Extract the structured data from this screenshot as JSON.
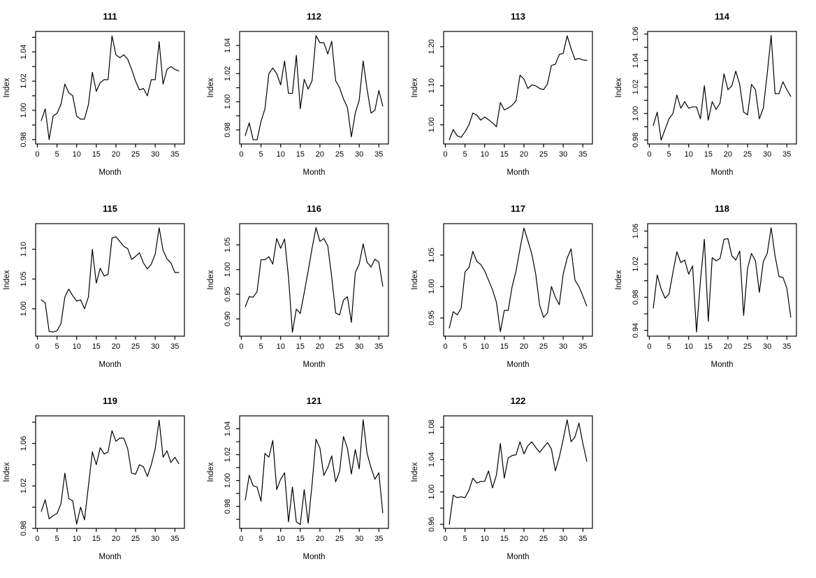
{
  "page": {
    "background": "#ffffff",
    "line_color": "#000000",
    "text_color": "#000000"
  },
  "chart_defaults": {
    "type": "line",
    "xlabel": "Month",
    "ylabel": "Index",
    "xticks": [
      0,
      5,
      10,
      15,
      20,
      25,
      30,
      35
    ],
    "xlim": [
      -0.44,
      37.44
    ],
    "grid": false,
    "legend": null,
    "x": [
      1,
      2,
      3,
      4,
      5,
      6,
      7,
      8,
      9,
      10,
      11,
      12,
      13,
      14,
      15,
      16,
      17,
      18,
      19,
      20,
      21,
      22,
      23,
      24,
      25,
      26,
      27,
      28,
      29,
      30,
      31,
      32,
      33,
      34,
      35,
      36
    ]
  },
  "chart_data": [
    {
      "type": "line",
      "title": "111",
      "xlabel": "Month",
      "ylabel": "Index",
      "ylim": [
        0.977,
        1.054
      ],
      "yticks": [
        0.98,
        1.0,
        1.02,
        1.04
      ],
      "yticks_minor": [
        0.99,
        1.01,
        1.03,
        1.05
      ],
      "values": [
        0.993,
        1.001,
        0.98,
        0.996,
        0.998,
        1.004,
        1.018,
        1.012,
        1.01,
        0.996,
        0.994,
        0.994,
        1.004,
        1.026,
        1.013,
        1.019,
        1.021,
        1.021,
        1.051,
        1.038,
        1.036,
        1.038,
        1.035,
        1.028,
        1.02,
        1.014,
        1.015,
        1.01,
        1.021,
        1.021,
        1.047,
        1.018,
        1.028,
        1.03,
        1.028,
        1.027
      ]
    },
    {
      "type": "line",
      "title": "112",
      "xlabel": "Month",
      "ylabel": "Index",
      "ylim": [
        0.97,
        1.05
      ],
      "yticks": [
        0.98,
        1.0,
        1.02,
        1.04
      ],
      "yticks_minor": [
        0.99,
        1.01,
        1.03
      ],
      "values": [
        0.976,
        0.985,
        0.973,
        0.973,
        0.986,
        0.995,
        1.02,
        1.024,
        1.02,
        1.012,
        1.029,
        1.006,
        1.006,
        1.033,
        0.995,
        1.016,
        1.009,
        1.015,
        1.047,
        1.042,
        1.042,
        1.034,
        1.043,
        1.015,
        1.01,
        1.002,
        0.996,
        0.975,
        0.992,
        1.001,
        1.029,
        1.009,
        0.992,
        0.994,
        1.008,
        0.997
      ]
    },
    {
      "type": "line",
      "title": "113",
      "xlabel": "Month",
      "ylabel": "Index",
      "ylim": [
        0.951,
        1.239
      ],
      "yticks": [
        1.0,
        1.1,
        1.2
      ],
      "yticks_minor": [
        1.05,
        1.15
      ],
      "values": [
        0.962,
        0.988,
        0.972,
        0.968,
        0.982,
        1.0,
        1.03,
        1.025,
        1.012,
        1.02,
        1.013,
        1.005,
        0.995,
        1.057,
        1.038,
        1.043,
        1.05,
        1.062,
        1.127,
        1.117,
        1.093,
        1.102,
        1.1,
        1.093,
        1.09,
        1.105,
        1.152,
        1.155,
        1.18,
        1.183,
        1.228,
        1.195,
        1.167,
        1.17,
        1.166,
        1.165
      ]
    },
    {
      "type": "line",
      "title": "114",
      "xlabel": "Month",
      "ylabel": "Index",
      "ylim": [
        0.977,
        1.062
      ],
      "yticks": [
        0.98,
        1.0,
        1.02,
        1.04,
        1.06
      ],
      "yticks_minor": [
        0.99,
        1.01,
        1.03,
        1.05
      ],
      "values": [
        0.991,
        1.001,
        0.98,
        0.988,
        0.996,
        1.0,
        1.014,
        1.004,
        1.009,
        1.004,
        1.005,
        1.005,
        0.996,
        1.021,
        0.995,
        1.009,
        1.003,
        1.008,
        1.03,
        1.018,
        1.021,
        1.032,
        1.022,
        1.001,
        0.999,
        1.022,
        1.018,
        0.996,
        1.004,
        1.03,
        1.059,
        1.015,
        1.015,
        1.024,
        1.018,
        1.013
      ]
    },
    {
      "type": "line",
      "title": "115",
      "xlabel": "Month",
      "ylabel": "Index",
      "ylim": [
        0.954,
        1.143
      ],
      "yticks": [
        1.0,
        1.05,
        1.1
      ],
      "yticks_minor": [],
      "values": [
        1.015,
        1.01,
        0.962,
        0.961,
        0.963,
        0.975,
        1.02,
        1.033,
        1.022,
        1.013,
        1.015,
        1.0,
        1.02,
        1.1,
        1.043,
        1.068,
        1.055,
        1.058,
        1.119,
        1.121,
        1.113,
        1.105,
        1.101,
        1.083,
        1.088,
        1.094,
        1.077,
        1.067,
        1.075,
        1.092,
        1.136,
        1.098,
        1.084,
        1.077,
        1.061,
        1.061
      ]
    },
    {
      "type": "line",
      "title": "116",
      "xlabel": "Month",
      "ylabel": "Index",
      "ylim": [
        0.865,
        1.093
      ],
      "yticks": [
        0.9,
        0.95,
        1.0,
        1.05
      ],
      "yticks_minor": [],
      "values": [
        0.925,
        0.945,
        0.944,
        0.955,
        1.02,
        1.02,
        1.026,
        1.011,
        1.063,
        1.043,
        1.062,
        0.985,
        0.873,
        0.92,
        0.911,
        0.953,
        0.997,
        1.043,
        1.085,
        1.057,
        1.063,
        1.048,
        0.985,
        0.912,
        0.908,
        0.938,
        0.945,
        0.893,
        0.994,
        1.011,
        1.052,
        1.015,
        1.005,
        1.021,
        1.015,
        0.966
      ]
    },
    {
      "type": "line",
      "title": "117",
      "xlabel": "Month",
      "ylabel": "Index",
      "ylim": [
        0.921,
        1.1
      ],
      "yticks": [
        0.95,
        1.0,
        1.05
      ],
      "yticks_minor": [],
      "values": [
        0.934,
        0.96,
        0.955,
        0.965,
        1.023,
        1.03,
        1.056,
        1.04,
        1.035,
        1.025,
        1.01,
        0.995,
        0.975,
        0.928,
        0.962,
        0.962,
        1.0,
        1.025,
        1.06,
        1.093,
        1.073,
        1.052,
        1.02,
        0.97,
        0.951,
        0.958,
        1.0,
        0.983,
        0.971,
        1.02,
        1.045,
        1.06,
        1.01,
        1.0,
        0.985,
        0.969
      ]
    },
    {
      "type": "line",
      "title": "118",
      "xlabel": "Month",
      "ylabel": "Index",
      "ylim": [
        0.933,
        1.069
      ],
      "yticks": [
        0.94,
        0.98,
        1.02,
        1.06
      ],
      "yticks_minor": [
        0.96,
        1.0,
        1.04
      ],
      "values": [
        0.967,
        1.007,
        0.99,
        0.979,
        0.984,
        1.01,
        1.035,
        1.022,
        1.025,
        1.008,
        1.018,
        0.938,
        1.0,
        1.05,
        0.951,
        1.028,
        1.024,
        1.027,
        1.05,
        1.051,
        1.03,
        1.025,
        1.036,
        0.958,
        1.015,
        1.033,
        1.024,
        0.986,
        1.023,
        1.033,
        1.064,
        1.03,
        1.005,
        1.004,
        0.991,
        0.956
      ]
    },
    {
      "type": "line",
      "title": "119",
      "xlabel": "Month",
      "ylabel": "Index",
      "ylim": [
        0.98,
        1.086
      ],
      "yticks": [
        0.98,
        1.02,
        1.06
      ],
      "yticks_minor": [
        1.0,
        1.04,
        1.08
      ],
      "values": [
        0.996,
        1.007,
        0.989,
        0.992,
        0.994,
        1.003,
        1.032,
        1.008,
        1.006,
        0.984,
        1.0,
        0.988,
        1.02,
        1.052,
        1.04,
        1.056,
        1.05,
        1.052,
        1.072,
        1.062,
        1.065,
        1.065,
        1.055,
        1.032,
        1.031,
        1.04,
        1.038,
        1.029,
        1.04,
        1.055,
        1.082,
        1.047,
        1.053,
        1.042,
        1.047,
        1.041
      ]
    },
    {
      "type": "line",
      "title": "121",
      "xlabel": "Month",
      "ylabel": "Index",
      "ylim": [
        0.963,
        1.05
      ],
      "yticks": [
        0.98,
        1.0,
        1.02,
        1.04
      ],
      "yticks_minor": [
        0.97,
        0.99,
        1.01,
        1.03
      ],
      "values": [
        0.985,
        1.004,
        0.996,
        0.995,
        0.984,
        1.021,
        1.018,
        1.031,
        0.993,
        1.001,
        1.006,
        0.968,
        0.995,
        0.968,
        0.966,
        0.993,
        0.967,
        0.997,
        1.032,
        1.025,
        1.004,
        1.01,
        1.019,
        0.999,
        1.007,
        1.034,
        1.025,
        1.005,
        1.024,
        1.009,
        1.047,
        1.021,
        1.01,
        1.001,
        1.006,
        0.975
      ]
    },
    {
      "type": "line",
      "title": "122",
      "xlabel": "Month",
      "ylabel": "Index",
      "ylim": [
        0.955,
        1.094
      ],
      "yticks": [
        0.96,
        1.0,
        1.04,
        1.08
      ],
      "yticks_minor": [
        0.98,
        1.02,
        1.06
      ],
      "values": [
        0.96,
        0.996,
        0.993,
        0.994,
        0.993,
        1.002,
        1.017,
        1.011,
        1.013,
        1.013,
        1.026,
        1.005,
        1.021,
        1.06,
        1.017,
        1.042,
        1.045,
        1.046,
        1.062,
        1.047,
        1.057,
        1.062,
        1.055,
        1.049,
        1.055,
        1.061,
        1.053,
        1.026,
        1.043,
        1.065,
        1.089,
        1.062,
        1.068,
        1.085,
        1.06,
        1.038
      ]
    }
  ]
}
